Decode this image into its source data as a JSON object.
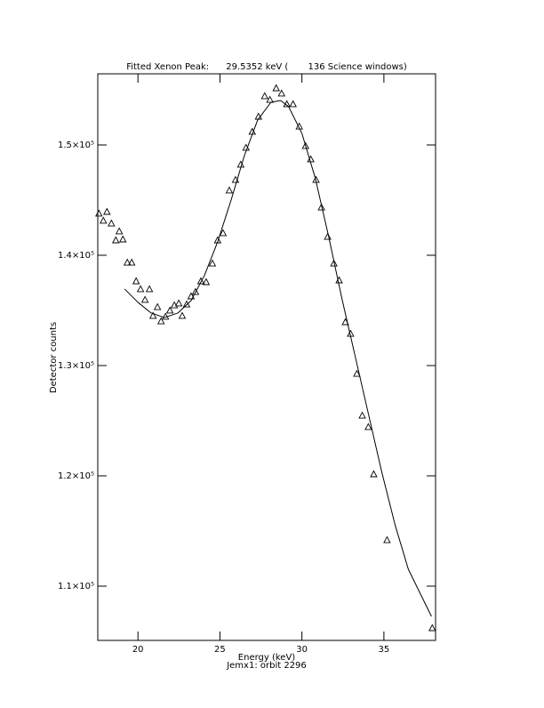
{
  "chart_data": {
    "type": "scatter",
    "title": "Fitted Xenon Peak:      29.5352 keV (       136 Science windows)",
    "x_label": "Energy (keV)",
    "subtitle": "Jemx1: orbit 2296",
    "y_label": "Detector counts",
    "xlim": [
      17.55,
      38.15
    ],
    "ylim": [
      105080,
      156450
    ],
    "xticks": [
      20,
      25,
      30,
      35
    ],
    "yticks": [
      {
        "value": 110000,
        "label": "1.1×10⁵"
      },
      {
        "value": 120000,
        "label": "1.2×10⁵"
      },
      {
        "value": 130000,
        "label": "1.3×10⁵"
      },
      {
        "value": 140000,
        "label": "1.4×10⁵"
      },
      {
        "value": 150000,
        "label": "1.5×10⁵"
      }
    ],
    "color": "#000000",
    "points": {
      "x": [
        17.62,
        17.89,
        18.11,
        18.38,
        18.65,
        18.86,
        19.08,
        19.35,
        19.62,
        19.89,
        20.16,
        20.43,
        20.7,
        20.92,
        21.19,
        21.41,
        21.68,
        21.95,
        22.22,
        22.49,
        22.7,
        22.97,
        23.24,
        23.51,
        23.84,
        24.16,
        24.54,
        24.86,
        25.19,
        25.57,
        25.95,
        26.27,
        26.59,
        26.97,
        27.35,
        27.73,
        28.05,
        28.43,
        28.76,
        29.08,
        29.46,
        29.84,
        30.22,
        30.54,
        30.86,
        31.19,
        31.57,
        31.95,
        32.27,
        32.65,
        32.97,
        33.35,
        33.68,
        34.05,
        34.38,
        35.19,
        37.95
      ],
      "y": [
        143790,
        143150,
        143950,
        142900,
        141370,
        142180,
        141450,
        139350,
        139350,
        137660,
        136940,
        135970,
        136940,
        134520,
        135320,
        134030,
        134440,
        135000,
        135480,
        135650,
        134520,
        135560,
        136290,
        136690,
        137660,
        137580,
        139270,
        141370,
        142020,
        145890,
        146850,
        148230,
        149760,
        151210,
        152580,
        154440,
        154110,
        155160,
        154680,
        153710,
        153710,
        151690,
        149920,
        148710,
        146850,
        144350,
        141690,
        139270,
        137740,
        133950,
        132900,
        129270,
        125480,
        124440,
        120160,
        114190,
        106210
      ]
    },
    "fit": {
      "x": [
        19.19,
        20.0,
        20.81,
        21.62,
        22.43,
        23.24,
        24.05,
        24.86,
        25.68,
        26.49,
        27.3,
        28.11,
        28.7,
        29.19,
        30.0,
        30.81,
        31.62,
        32.43,
        33.24,
        34.05,
        34.86,
        35.68,
        36.49,
        37.9
      ],
      "y": [
        136940,
        135730,
        134760,
        134350,
        134760,
        135890,
        138150,
        141210,
        145000,
        149030,
        152260,
        153870,
        154030,
        153470,
        151050,
        147020,
        141770,
        136130,
        130890,
        125650,
        120400,
        115560,
        111530,
        107260
      ]
    }
  }
}
